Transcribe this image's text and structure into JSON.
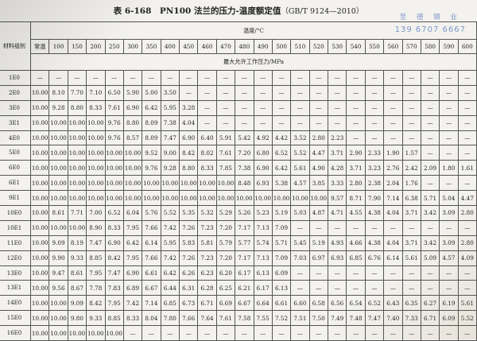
{
  "title": {
    "main": "表 6-168　PN100 法兰的压力-温度额定值",
    "sub": "（GB/T 9124—2010）"
  },
  "watermark": {
    "name": "至 德 钢 业",
    "phone": "139 6707 6667"
  },
  "table": {
    "group_header": "材料组别",
    "temp_header": "温度/°C",
    "unit_header": "最大允许工作压力/MPa",
    "temps": [
      "常温",
      "100",
      "150",
      "200",
      "250",
      "300",
      "350",
      "400",
      "450",
      "460",
      "470",
      "480",
      "490",
      "500",
      "510",
      "520",
      "530",
      "540",
      "550",
      "560",
      "570",
      "580",
      "590",
      "600"
    ],
    "rows": [
      {
        "group": "1E0",
        "values": [
          "—",
          "—",
          "—",
          "—",
          "—",
          "—",
          "—",
          "—",
          "—",
          "—",
          "—",
          "—",
          "—",
          "—",
          "—",
          "—",
          "—",
          "—",
          "—",
          "—",
          "—",
          "—",
          "—",
          "—"
        ]
      },
      {
        "group": "2E0",
        "values": [
          "10.00",
          "8.10",
          "7.70",
          "7.10",
          "6.50",
          "5.90",
          "5.00",
          "3.50",
          "—",
          "—",
          "—",
          "—",
          "—",
          "—",
          "—",
          "—",
          "—",
          "—",
          "—",
          "—",
          "—",
          "—",
          "—",
          "—"
        ]
      },
      {
        "group": "3E0",
        "values": [
          "10.00",
          "9.28",
          "8.80",
          "8.33",
          "7.61",
          "6.90",
          "6.42",
          "5.95",
          "3.28",
          "—",
          "—",
          "—",
          "—",
          "—",
          "—",
          "—",
          "—",
          "—",
          "—",
          "—",
          "—",
          "—",
          "—",
          "—"
        ]
      },
      {
        "group": "3E1",
        "values": [
          "10.00",
          "10.00",
          "10.00",
          "10.00",
          "9.76",
          "8.80",
          "8.09",
          "7.38",
          "4.04",
          "—",
          "—",
          "—",
          "—",
          "—",
          "—",
          "—",
          "—",
          "—",
          "—",
          "—",
          "—",
          "—",
          "—",
          "—"
        ]
      },
      {
        "group": "4E0",
        "values": [
          "10.00",
          "10.00",
          "10.00",
          "10.00",
          "9.76",
          "8.57",
          "8.09",
          "7.47",
          "6.90",
          "6.40",
          "5.91",
          "5.42",
          "4.92",
          "4.42",
          "3.52",
          "2.80",
          "2.23",
          "—",
          "—",
          "—",
          "—",
          "—",
          "—",
          "—"
        ]
      },
      {
        "group": "5E0",
        "values": [
          "10.00",
          "10.00",
          "10.00",
          "10.00",
          "10.00",
          "10.00",
          "9.52",
          "9.00",
          "8.42",
          "8.02",
          "7.61",
          "7.20",
          "6.80",
          "6.52",
          "5.52",
          "4.47",
          "3.71",
          "2.90",
          "2.33",
          "1.90",
          "1.57",
          "—",
          "—",
          "—"
        ]
      },
      {
        "group": "6E0",
        "values": [
          "10.00",
          "10.00",
          "10.00",
          "10.00",
          "10.00",
          "10.00",
          "9.76",
          "9.28",
          "8.80",
          "8.33",
          "7.85",
          "7.38",
          "6.90",
          "6.42",
          "5.61",
          "4.90",
          "4.28",
          "3.71",
          "3.23",
          "2.76",
          "2.42",
          "2.09",
          "1.80",
          "1.61"
        ]
      },
      {
        "group": "6E1",
        "values": [
          "10.00",
          "10.00",
          "10.00",
          "10.00",
          "10.00",
          "10.00",
          "10.00",
          "10.00",
          "10.00",
          "10.00",
          "10.00",
          "8.48",
          "6.93",
          "5.38",
          "4.57",
          "3.85",
          "3.33",
          "2.80",
          "2.38",
          "2.04",
          "1.76",
          "—",
          "—",
          "—"
        ]
      },
      {
        "group": "9E1",
        "values": [
          "10.00",
          "10.00",
          "10.00",
          "10.00",
          "10.00",
          "10.00",
          "10.00",
          "10.00",
          "10.00",
          "10.00",
          "10.00",
          "10.00",
          "10.00",
          "10.00",
          "10.00",
          "10.00",
          "9.57",
          "8.71",
          "7.90",
          "7.14",
          "6.38",
          "5.71",
          "5.04",
          "4.47"
        ]
      },
      {
        "group": "10E0",
        "values": [
          "10.00",
          "8.61",
          "7.71",
          "7.00",
          "6.52",
          "6.04",
          "5.76",
          "5.52",
          "5.35",
          "5.32",
          "5.29",
          "5.26",
          "5.23",
          "5.19",
          "5.03",
          "4.87",
          "4.71",
          "4.55",
          "4.38",
          "4.04",
          "3.71",
          "3.42",
          "3.09",
          "2.80"
        ]
      },
      {
        "group": "10E1",
        "values": [
          "10.00",
          "10.00",
          "10.00",
          "8.90",
          "8.33",
          "7.95",
          "7.66",
          "7.42",
          "7.26",
          "7.23",
          "7.20",
          "7.17",
          "7.13",
          "7.09",
          "—",
          "—",
          "—",
          "—",
          "—",
          "—",
          "—",
          "—",
          "—",
          "—"
        ]
      },
      {
        "group": "11E0",
        "values": [
          "10.00",
          "9.09",
          "8.19",
          "7.47",
          "6.90",
          "6.42",
          "6.14",
          "5.95",
          "5.83",
          "5.81",
          "5.79",
          "5.77",
          "5.74",
          "5.71",
          "5.45",
          "5.19",
          "4.93",
          "4.66",
          "4.38",
          "4.04",
          "3.71",
          "3.42",
          "3.09",
          "2.80"
        ]
      },
      {
        "group": "12E0",
        "values": [
          "10.00",
          "9.90",
          "9.33",
          "8.85",
          "8.42",
          "7.95",
          "7.66",
          "7.42",
          "7.26",
          "7.23",
          "7.20",
          "7.17",
          "7.13",
          "7.09",
          "7.03",
          "6.97",
          "6.93",
          "6.85",
          "6.76",
          "6.14",
          "5.61",
          "5.09",
          "4.57",
          "4.09"
        ]
      },
      {
        "group": "13E0",
        "values": [
          "10.00",
          "9.47",
          "8.61",
          "7.95",
          "7.47",
          "6.90",
          "6.61",
          "6.42",
          "6.26",
          "6.23",
          "6.20",
          "6.17",
          "6.13",
          "6.09",
          "—",
          "—",
          "—",
          "—",
          "—",
          "—",
          "—",
          "—",
          "—",
          "—"
        ]
      },
      {
        "group": "13E1",
        "values": [
          "10.00",
          "9.56",
          "8.67",
          "7.78",
          "7.83",
          "6.89",
          "6.67",
          "6.44",
          "6.31",
          "6.28",
          "6.25",
          "6.21",
          "6.17",
          "6.13",
          "—",
          "—",
          "—",
          "—",
          "—",
          "—",
          "—",
          "—",
          "—",
          "—"
        ]
      },
      {
        "group": "14E0",
        "values": [
          "10.00",
          "10.00",
          "9.09",
          "8.42",
          "7.95",
          "7.42",
          "7.14",
          "6.85",
          "6.73",
          "6.71",
          "6.69",
          "6.67",
          "6.64",
          "6.61",
          "6.60",
          "6.58",
          "6.56",
          "6.54",
          "6.52",
          "6.43",
          "6.35",
          "6.27",
          "6.19",
          "5.61"
        ]
      },
      {
        "group": "15E0",
        "values": [
          "10.00",
          "10.00",
          "9.80",
          "9.33",
          "8.85",
          "8.33",
          "8.04",
          "7.80",
          "7.66",
          "7.64",
          "7.61",
          "7.58",
          "7.55",
          "7.52",
          "7.51",
          "7.50",
          "7.49",
          "7.48",
          "7.47",
          "7.40",
          "7.33",
          "6.71",
          "6.09",
          "5.52"
        ]
      },
      {
        "group": "16E0",
        "values": [
          "10.00",
          "10.00",
          "10.00",
          "10.00",
          "10.00",
          "—",
          "—",
          "—",
          "—",
          "—",
          "—",
          "—",
          "—",
          "—",
          "—",
          "—",
          "—",
          "—",
          "—",
          "—",
          "—",
          "—",
          "—",
          "—"
        ]
      }
    ]
  }
}
